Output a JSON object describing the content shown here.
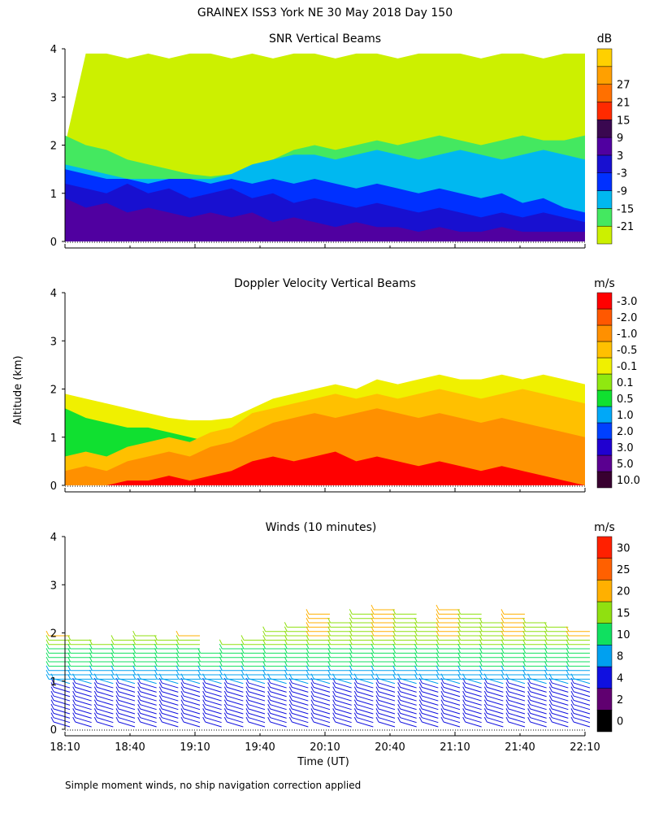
{
  "title": "GRAINEX ISS3 York NE  30 May 2018 Day 150",
  "footnote": "Simple moment winds, no ship navigation correction applied",
  "chart_data": [
    {
      "type": "heatmap",
      "title": "SNR Vertical Beams",
      "ylabel": "",
      "ylim": [
        0,
        4
      ],
      "yticks": [
        "0",
        "1",
        "2",
        "3",
        "4"
      ],
      "xlim": [
        "18:10",
        "22:10"
      ],
      "colorbar": {
        "unit": "dB",
        "labels": [
          "-21",
          "-15",
          "-9",
          "-3",
          "3",
          "9",
          "15",
          "21",
          "27"
        ],
        "colors": [
          "#ccf000",
          "#44e860",
          "#00b8f0",
          "#0030ff",
          "#1810d0",
          "#5000a0",
          "#3a0850",
          "#ff2a00",
          "#ff7000",
          "#ffa000",
          "#ffd000"
        ]
      },
      "layers": [
        {
          "level": "-21",
          "color": "#ccf000",
          "top": [
            2.0,
            3.9,
            3.9,
            3.8,
            3.9,
            3.8,
            3.9,
            3.9,
            3.8,
            3.9,
            3.8,
            3.9,
            3.9,
            3.8,
            3.9,
            3.9,
            3.8,
            3.9,
            3.9,
            3.9,
            3.8,
            3.9,
            3.9,
            3.8,
            3.9,
            3.9
          ]
        },
        {
          "level": "-15",
          "color": "#44e860",
          "top": [
            2.2,
            2.0,
            1.9,
            1.7,
            1.6,
            1.5,
            1.4,
            1.35,
            1.4,
            1.5,
            1.7,
            1.9,
            2.0,
            1.9,
            2.0,
            2.1,
            2.0,
            2.1,
            2.2,
            2.1,
            2.0,
            2.1,
            2.2,
            2.1,
            2.1,
            2.2
          ]
        },
        {
          "level": "-9",
          "color": "#00b8f0",
          "top": [
            1.6,
            1.5,
            1.4,
            1.3,
            1.3,
            1.3,
            1.3,
            1.3,
            1.4,
            1.6,
            1.7,
            1.8,
            1.8,
            1.7,
            1.8,
            1.9,
            1.8,
            1.7,
            1.8,
            1.9,
            1.8,
            1.7,
            1.8,
            1.9,
            1.8,
            1.7
          ]
        },
        {
          "level": "-3",
          "color": "#0030ff",
          "top": [
            1.5,
            1.4,
            1.3,
            1.3,
            1.2,
            1.3,
            1.3,
            1.2,
            1.3,
            1.2,
            1.3,
            1.2,
            1.3,
            1.2,
            1.1,
            1.2,
            1.1,
            1.0,
            1.1,
            1.0,
            0.9,
            1.0,
            0.8,
            0.9,
            0.7,
            0.6
          ]
        },
        {
          "level": "3",
          "color": "#1810d0",
          "top": [
            1.2,
            1.1,
            1.0,
            1.2,
            1.0,
            1.1,
            0.9,
            1.0,
            1.1,
            0.9,
            1.0,
            0.8,
            0.9,
            0.8,
            0.7,
            0.8,
            0.7,
            0.6,
            0.7,
            0.6,
            0.5,
            0.6,
            0.5,
            0.6,
            0.5,
            0.4
          ]
        },
        {
          "level": "9",
          "color": "#5000a0",
          "top": [
            0.9,
            0.7,
            0.8,
            0.6,
            0.7,
            0.6,
            0.5,
            0.6,
            0.5,
            0.6,
            0.4,
            0.5,
            0.4,
            0.3,
            0.4,
            0.3,
            0.3,
            0.2,
            0.3,
            0.2,
            0.2,
            0.3,
            0.2,
            0.2,
            0.2,
            0.2
          ]
        }
      ]
    },
    {
      "type": "heatmap",
      "title": "Doppler Velocity Vertical Beams",
      "ylabel": "Altitude (km)",
      "ylim": [
        0,
        4
      ],
      "yticks": [
        "0",
        "1",
        "2",
        "3",
        "4"
      ],
      "xlim": [
        "18:10",
        "22:10"
      ],
      "colorbar": {
        "unit": "m/s",
        "labels": [
          "10.0",
          "5.0",
          "3.0",
          "2.0",
          "1.0",
          "0.5",
          "0.1",
          "-0.1",
          "-0.5",
          "-1.0",
          "-2.0",
          "-3.0"
        ],
        "colors": [
          "#380030",
          "#5a0090",
          "#2000d0",
          "#0040ff",
          "#00a8f8",
          "#10e030",
          "#90e810",
          "#f0f000",
          "#ffc000",
          "#ff9000",
          "#ff5800",
          "#ff0000"
        ]
      },
      "layers": [
        {
          "level": "-0.1",
          "color": "#f0f000",
          "top": [
            1.9,
            1.8,
            1.7,
            1.6,
            1.5,
            1.4,
            1.35,
            1.35,
            1.4,
            1.6,
            1.8,
            1.9,
            2.0,
            2.1,
            2.0,
            2.2,
            2.1,
            2.2,
            2.3,
            2.2,
            2.2,
            2.3,
            2.2,
            2.3,
            2.2,
            2.1
          ]
        },
        {
          "level": "0.5",
          "color": "#10e030",
          "top": [
            1.6,
            1.4,
            1.3,
            1.2,
            1.2,
            1.1,
            1.0,
            0.9,
            0.8,
            0.7,
            0.7,
            0.6,
            0.6,
            0.6,
            0.7,
            0.6,
            0.6,
            0.6,
            0.7,
            0.6,
            0.6,
            0.7,
            0.6,
            0.6,
            0.7,
            0.6
          ]
        },
        {
          "level": "-0.5",
          "color": "#ffc000",
          "top": [
            0.6,
            0.7,
            0.6,
            0.8,
            0.9,
            1.0,
            0.9,
            1.1,
            1.2,
            1.5,
            1.6,
            1.7,
            1.8,
            1.9,
            1.8,
            1.9,
            1.8,
            1.9,
            2.0,
            1.9,
            1.8,
            1.9,
            2.0,
            1.9,
            1.8,
            1.7
          ]
        },
        {
          "level": "-1.0",
          "color": "#ff9000",
          "top": [
            0.3,
            0.4,
            0.3,
            0.5,
            0.6,
            0.7,
            0.6,
            0.8,
            0.9,
            1.1,
            1.3,
            1.4,
            1.5,
            1.4,
            1.5,
            1.6,
            1.5,
            1.4,
            1.5,
            1.4,
            1.3,
            1.4,
            1.3,
            1.2,
            1.1,
            1.0
          ]
        },
        {
          "level": "-3.0",
          "color": "#ff0000",
          "top": [
            0.0,
            0.0,
            0.0,
            0.1,
            0.1,
            0.2,
            0.1,
            0.2,
            0.3,
            0.5,
            0.6,
            0.5,
            0.6,
            0.7,
            0.5,
            0.6,
            0.5,
            0.4,
            0.5,
            0.4,
            0.3,
            0.4,
            0.3,
            0.2,
            0.1,
            0.0
          ]
        }
      ]
    },
    {
      "type": "scatter",
      "title": "Winds (10 minutes)",
      "ylabel": "",
      "ylim": [
        0,
        4
      ],
      "yticks": [
        "0",
        "1",
        "2",
        "3",
        "4"
      ],
      "xlabel": "Time (UT)",
      "xticks": [
        "18:10",
        "18:40",
        "19:10",
        "19:40",
        "20:10",
        "20:40",
        "21:10",
        "21:40",
        "22:10"
      ],
      "colorbar": {
        "unit": "m/s",
        "labels": [
          "0",
          "2",
          "4",
          "8",
          "10",
          "15",
          "20",
          "25",
          "30"
        ],
        "colors": [
          "#000000",
          "#600070",
          "#1010e0",
          "#00a0f0",
          "#10e060",
          "#90e010",
          "#ffb000",
          "#ff6000",
          "#ff2000"
        ]
      },
      "profile_times_min": [
        0,
        10,
        20,
        30,
        40,
        50,
        60,
        70,
        80,
        90,
        100,
        110,
        120,
        130,
        140,
        150,
        160,
        170,
        180,
        190,
        200,
        210,
        220,
        230,
        240
      ],
      "profile_tops_km": [
        2.0,
        1.9,
        1.8,
        1.9,
        2.0,
        1.9,
        2.0,
        1.6,
        1.8,
        1.9,
        2.1,
        2.2,
        2.4,
        2.3,
        2.4,
        2.5,
        2.4,
        2.3,
        2.5,
        2.4,
        2.3,
        2.4,
        2.3,
        2.2,
        2.1
      ]
    }
  ]
}
